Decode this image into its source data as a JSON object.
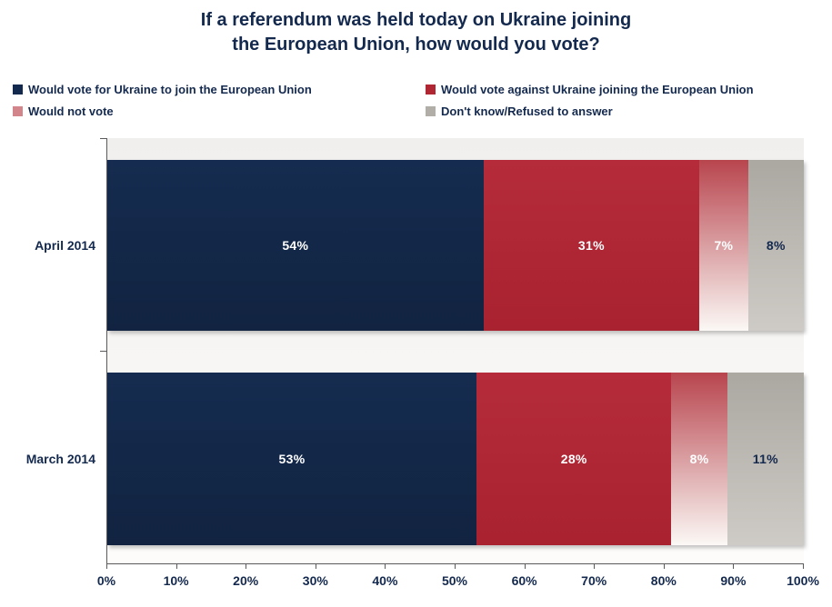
{
  "title": {
    "line1": "If a referendum was held today on Ukraine joining",
    "line2": "the European Union, how would you vote?"
  },
  "chart_data": {
    "type": "bar",
    "variant": "horizontal-stacked",
    "title": "If a referendum was held today on Ukraine joining the European Union, how would you vote?",
    "categories": [
      "April 2014",
      "March 2014"
    ],
    "series": [
      {
        "name": "Would vote for Ukraine to join the European Union",
        "values": [
          54,
          53
        ],
        "swatch": "#14294e",
        "fill_top": "#152c50",
        "fill_bottom": "#112340",
        "label_color": "#ffffff"
      },
      {
        "name": "Would vote against Ukraine joining the European Union",
        "values": [
          31,
          28
        ],
        "swatch": "#b02633",
        "fill_top": "#b52b39",
        "fill_bottom": "#a92230",
        "label_color": "#ffffff"
      },
      {
        "name": "Would not vote",
        "values": [
          7,
          8
        ],
        "swatch": "#d2858a",
        "fill_top": "#b8454e",
        "fill_bottom": "#fbf8f5",
        "label_color": "#ffffff"
      },
      {
        "name": "Don't know/Refused to answer",
        "values": [
          8,
          11
        ],
        "swatch": "#b1ada7",
        "fill_top": "#aba7a1",
        "fill_bottom": "#cecbc6",
        "label_color": "#14294e"
      }
    ],
    "value_suffix": "%",
    "xlim": [
      0,
      100
    ],
    "x_ticks": [
      "0%",
      "10%",
      "20%",
      "30%",
      "40%",
      "50%",
      "60%",
      "70%",
      "80%",
      "90%",
      "100%"
    ],
    "legend_position": "top-left",
    "grid": false
  }
}
